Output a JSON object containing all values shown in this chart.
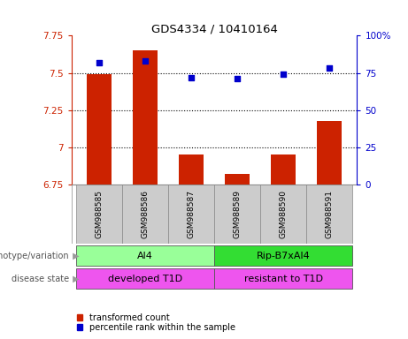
{
  "title": "GDS4334 / 10410164",
  "samples": [
    "GSM988585",
    "GSM988586",
    "GSM988587",
    "GSM988589",
    "GSM988590",
    "GSM988591"
  ],
  "bar_values": [
    7.49,
    7.65,
    6.95,
    6.82,
    6.95,
    7.18
  ],
  "dot_values": [
    82,
    83,
    72,
    71,
    74,
    78
  ],
  "bar_color": "#cc2200",
  "dot_color": "#0000cc",
  "ylim_left": [
    6.75,
    7.75
  ],
  "ylim_right": [
    0,
    100
  ],
  "yticks_left": [
    6.75,
    7.0,
    7.25,
    7.5,
    7.75
  ],
  "ytick_labels_left": [
    "6.75",
    "7",
    "7.25",
    "7.5",
    "7.75"
  ],
  "yticks_right": [
    0,
    25,
    50,
    75,
    100
  ],
  "ytick_labels_right": [
    "0",
    "25",
    "50",
    "75",
    "100%"
  ],
  "hlines": [
    7.0,
    7.25,
    7.5
  ],
  "group1_label": "Al4",
  "group2_label": "Rip-B7xAl4",
  "group1_color": "#99ff99",
  "group2_color": "#33dd33",
  "disease1_label": "developed T1D",
  "disease2_label": "resistant to T1D",
  "disease_color": "#ee55ee",
  "legend_bar": "transformed count",
  "legend_dot": "percentile rank within the sample",
  "row_label_genotype": "genotype/variation",
  "row_label_disease": "disease state",
  "bar_bottom": 6.75,
  "left_axis_color": "#cc2200",
  "right_axis_color": "#0000cc",
  "label_bg_color": "#cccccc"
}
